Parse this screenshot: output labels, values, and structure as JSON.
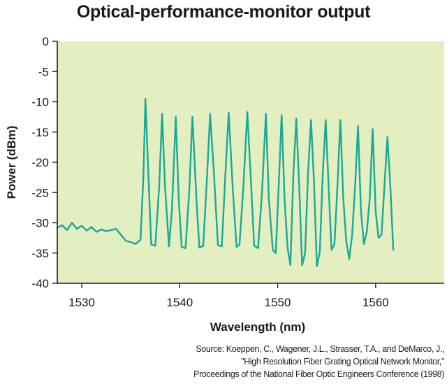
{
  "chart_data": {
    "type": "line",
    "title": "Optical-performance-monitor output",
    "xlabel": "Wavelength (nm)",
    "ylabel": "Power (dBm)",
    "xlim": [
      1527.5,
      1567
    ],
    "ylim": [
      -40,
      0
    ],
    "x_ticks": [
      1530,
      1540,
      1550,
      1560
    ],
    "y_ticks": [
      0,
      -5,
      -10,
      -15,
      -20,
      -25,
      -30,
      -35,
      -40
    ],
    "grid": false,
    "colors": {
      "plot_background": "#e3efc0",
      "line": "#1aa898",
      "axis": "#222222"
    },
    "series": [
      {
        "x": [
          1527.5,
          1528.0,
          1528.5,
          1529.0,
          1529.5,
          1530.0,
          1530.5,
          1531.0,
          1531.5,
          1532.0,
          1532.5,
          1533.0,
          1533.5,
          1534.0,
          1534.5,
          1535.0,
          1535.5,
          1536.0,
          1536.3,
          1536.5,
          1536.8,
          1537.1,
          1537.5,
          1537.9,
          1538.2,
          1538.5,
          1538.9,
          1539.2,
          1539.6,
          1539.9,
          1540.2,
          1540.6,
          1541.0,
          1541.3,
          1541.7,
          1542.0,
          1542.4,
          1542.8,
          1543.1,
          1543.5,
          1543.9,
          1544.3,
          1544.6,
          1545.0,
          1545.4,
          1545.8,
          1546.1,
          1546.5,
          1546.9,
          1547.3,
          1547.6,
          1548.0,
          1548.4,
          1548.8,
          1549.1,
          1549.5,
          1549.8,
          1550.1,
          1550.4,
          1550.7,
          1551.0,
          1551.3,
          1551.6,
          1551.9,
          1552.2,
          1552.5,
          1552.8,
          1553.1,
          1553.4,
          1553.7,
          1554.0,
          1554.3,
          1554.6,
          1554.9,
          1555.2,
          1555.5,
          1555.8,
          1556.1,
          1556.4,
          1556.7,
          1557.0,
          1557.3,
          1557.6,
          1557.9,
          1558.2,
          1558.5,
          1558.8,
          1559.1,
          1559.4,
          1559.7,
          1560.0,
          1560.3,
          1560.6,
          1560.9,
          1561.2,
          1561.5,
          1561.8
        ],
        "values": [
          -30.8,
          -30.4,
          -31.2,
          -30.0,
          -31.0,
          -30.5,
          -31.3,
          -30.7,
          -31.5,
          -31.1,
          -31.4,
          -31.2,
          -31.0,
          -32.0,
          -33.0,
          -33.2,
          -33.5,
          -32.8,
          -22.0,
          -9.5,
          -22.0,
          -33.6,
          -33.8,
          -24.0,
          -12.0,
          -24.0,
          -33.9,
          -28.0,
          -12.5,
          -26.0,
          -34.0,
          -34.2,
          -24.0,
          -12.5,
          -26.0,
          -34.1,
          -33.8,
          -22.0,
          -12.0,
          -22.0,
          -33.7,
          -33.9,
          -24.0,
          -11.8,
          -24.0,
          -34.0,
          -33.6,
          -24.0,
          -11.7,
          -24.0,
          -33.8,
          -34.2,
          -25.0,
          -12.0,
          -26.0,
          -34.5,
          -35.0,
          -24.0,
          -12.2,
          -26.0,
          -34.0,
          -37.0,
          -22.0,
          -12.8,
          -24.0,
          -37.0,
          -35.0,
          -22.0,
          -13.0,
          -23.0,
          -37.2,
          -34.8,
          -22.0,
          -13.0,
          -24.0,
          -34.5,
          -33.5,
          -24.0,
          -13.0,
          -26.0,
          -33.0,
          -36.0,
          -32.0,
          -24.0,
          -14.0,
          -28.0,
          -33.5,
          -31.5,
          -26.0,
          -14.5,
          -28.0,
          -32.5,
          -32.0,
          -24.0,
          -15.8,
          -24.0,
          -34.5
        ]
      }
    ],
    "source": [
      "Source: Koeppen, C., Wagener, J.L., Strasser, T.A., and DeMarco, J.,",
      "\"High Resolution Fiber Grating Optical Network Monitor,\"",
      "Proceedings of the National Fiber Optic Engineers Conference (1998)"
    ]
  }
}
